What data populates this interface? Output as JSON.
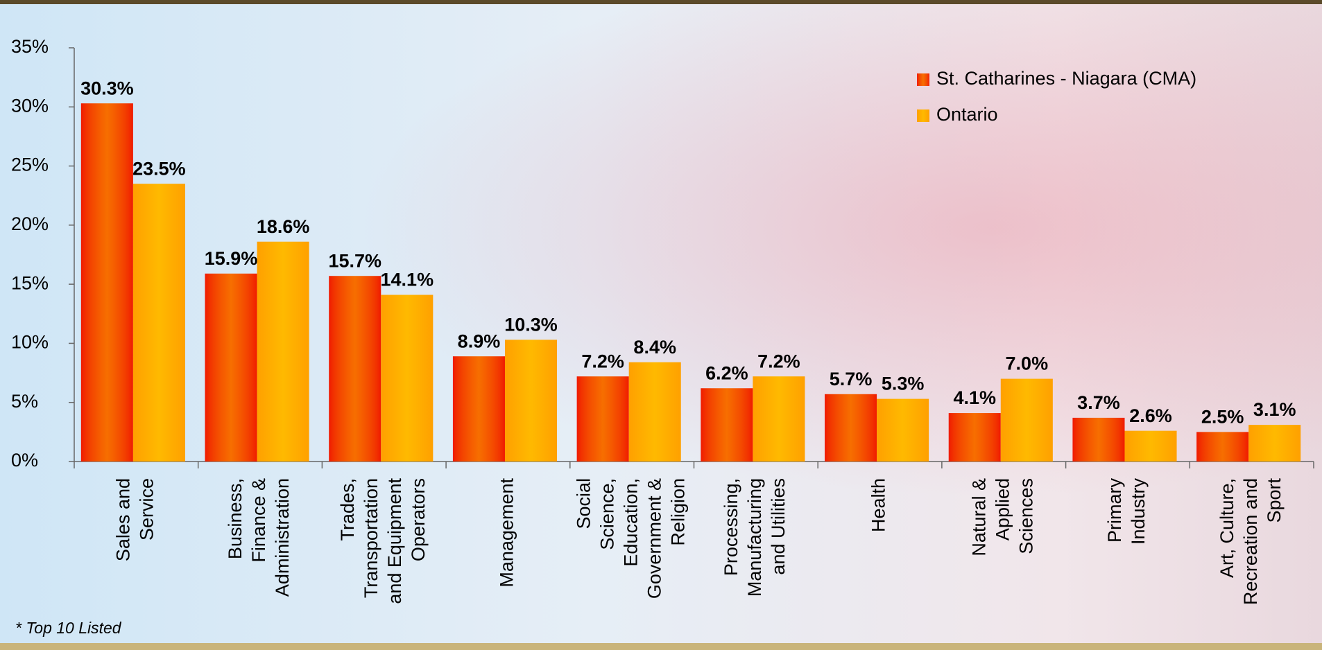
{
  "chart_data": {
    "type": "bar",
    "categories": [
      [
        "Sales and",
        "Service"
      ],
      [
        "Business,",
        "Finance &",
        "Administration"
      ],
      [
        "Trades,",
        "Transportation",
        "and Equipment",
        "Operators"
      ],
      [
        "Management"
      ],
      [
        "Social",
        "Science,",
        "Education,",
        "Government &",
        "Religion"
      ],
      [
        "Processing,",
        "Manufacturing",
        "and Utilities"
      ],
      [
        "Health"
      ],
      [
        "Natural &",
        "Applied",
        "Sciences"
      ],
      [
        "Primary",
        "Industry"
      ],
      [
        "Art, Culture,",
        "Recreation and",
        "Sport"
      ]
    ],
    "series": [
      {
        "name": "St. Catharines - Niagara (CMA)",
        "color": "#f01800",
        "values": [
          30.3,
          15.9,
          15.7,
          8.9,
          7.2,
          6.2,
          5.7,
          4.1,
          3.7,
          2.5
        ],
        "value_labels": [
          "30.3%",
          "15.9%",
          "15.7%",
          "8.9%",
          "7.2%",
          "6.2%",
          "5.7%",
          "4.1%",
          "3.7%",
          "2.5%"
        ]
      },
      {
        "name": "Ontario",
        "color": "#ffa000",
        "values": [
          23.5,
          18.6,
          14.1,
          10.3,
          8.4,
          7.2,
          5.3,
          7.0,
          2.6,
          3.1
        ],
        "value_labels": [
          "23.5%",
          "18.6%",
          "14.1%",
          "10.3%",
          "8.4%",
          "7.2%",
          "5.3%",
          "7.0%",
          "2.6%",
          "3.1%"
        ]
      }
    ],
    "ylim": [
      0,
      35
    ],
    "yticks": [
      {
        "value": 0,
        "label": "0%"
      },
      {
        "value": 5,
        "label": "5%"
      },
      {
        "value": 10,
        "label": "10%"
      },
      {
        "value": 15,
        "label": "15%"
      },
      {
        "value": 20,
        "label": "20%"
      },
      {
        "value": 25,
        "label": "25%"
      },
      {
        "value": 30,
        "label": "30%"
      },
      {
        "value": 35,
        "label": "35%"
      }
    ],
    "legend": "top-right",
    "footnote": "* Top 10 Listed"
  }
}
